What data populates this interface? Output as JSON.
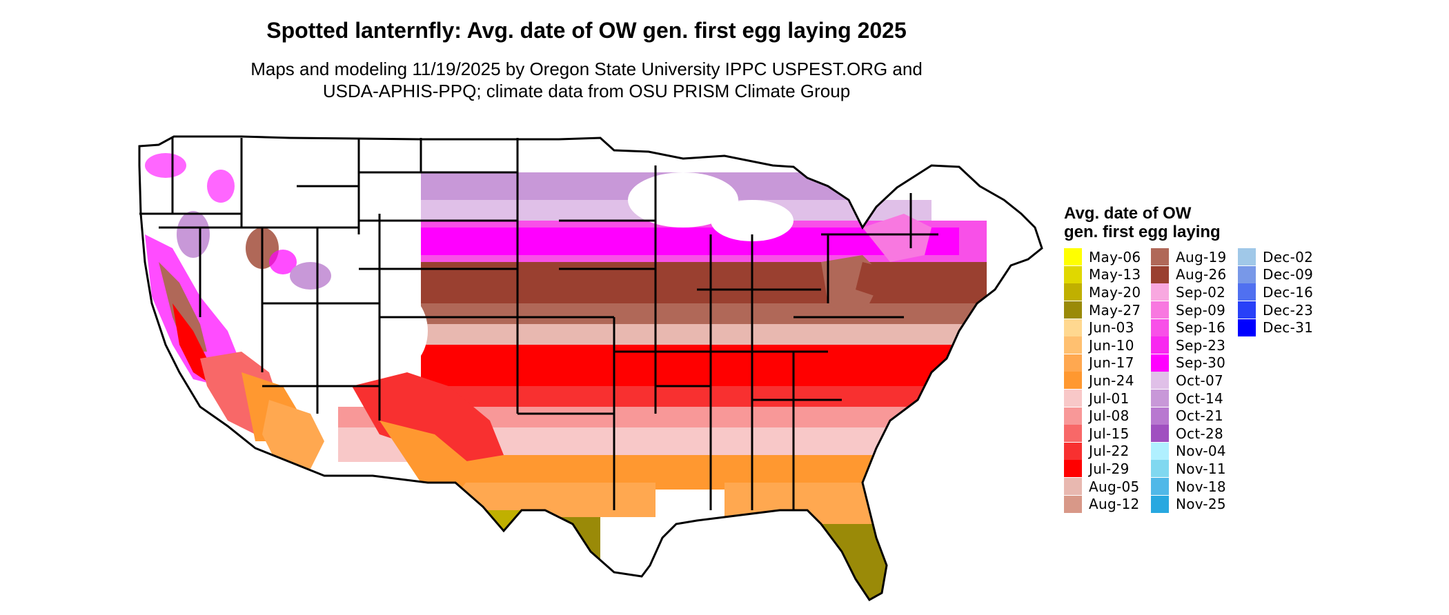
{
  "header": {
    "title": "Spotted lanternfly: Avg. date of OW gen. first egg laying 2025",
    "subtitle_line1": "Maps and modeling 11/19/2025 by Oregon State University IPPC USPEST.ORG and",
    "subtitle_line2": "USDA-APHIS-PPQ; climate data from OSU PRISM Climate Group"
  },
  "map": {
    "region": "conterminous-united-states",
    "state_border_color": "#000000",
    "no_data_color": "#ffffff"
  },
  "legend": {
    "title": "Avg. date of OW gen. first egg laying",
    "columns": [
      [
        {
          "label": "May-06",
          "color": "#ffff00"
        },
        {
          "label": "May-13",
          "color": "#e0d800"
        },
        {
          "label": "May-20",
          "color": "#c0b000"
        },
        {
          "label": "May-27",
          "color": "#9a8a08"
        },
        {
          "label": "Jun-03",
          "color": "#ffd890"
        },
        {
          "label": "Jun-10",
          "color": "#ffc070"
        },
        {
          "label": "Jun-17",
          "color": "#ffa850"
        },
        {
          "label": "Jun-24",
          "color": "#ff9830"
        },
        {
          "label": "Jul-01",
          "color": "#f8c8c8"
        },
        {
          "label": "Jul-08",
          "color": "#f89898"
        },
        {
          "label": "Jul-15",
          "color": "#f86868"
        },
        {
          "label": "Jul-22",
          "color": "#f83030"
        },
        {
          "label": "Jul-29",
          "color": "#ff0000"
        },
        {
          "label": "Aug-05",
          "color": "#e8b8b0"
        },
        {
          "label": "Aug-12",
          "color": "#d89888"
        }
      ],
      [
        {
          "label": "Aug-19",
          "color": "#b06858"
        },
        {
          "label": "Aug-26",
          "color": "#9a4030"
        },
        {
          "label": "Sep-02",
          "color": "#f8a8e0"
        },
        {
          "label": "Sep-09",
          "color": "#f878e0"
        },
        {
          "label": "Sep-16",
          "color": "#f850e8"
        },
        {
          "label": "Sep-23",
          "color": "#f828f0"
        },
        {
          "label": "Sep-30",
          "color": "#ff00ff"
        },
        {
          "label": "Oct-07",
          "color": "#e0c0e8"
        },
        {
          "label": "Oct-14",
          "color": "#c898d8"
        },
        {
          "label": "Oct-21",
          "color": "#b878d0"
        },
        {
          "label": "Oct-28",
          "color": "#a050c0"
        },
        {
          "label": "Nov-04",
          "color": "#b0f0ff"
        },
        {
          "label": "Nov-11",
          "color": "#80d8f0"
        },
        {
          "label": "Nov-18",
          "color": "#50b8e8"
        },
        {
          "label": "Nov-25",
          "color": "#28a8e0"
        }
      ],
      [
        {
          "label": "Dec-02",
          "color": "#a0c8e8"
        },
        {
          "label": "Dec-09",
          "color": "#7898e8"
        },
        {
          "label": "Dec-16",
          "color": "#5070f0"
        },
        {
          "label": "Dec-23",
          "color": "#2840f8"
        },
        {
          "label": "Dec-31",
          "color": "#0000ff"
        }
      ]
    ]
  }
}
